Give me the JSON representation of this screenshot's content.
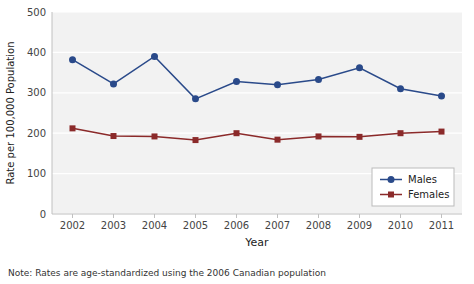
{
  "chart_data": {
    "type": "line",
    "xlabel": "Year",
    "ylabel": "Rate per 100,000 Population",
    "x": [
      2002,
      2003,
      2004,
      2005,
      2006,
      2007,
      2008,
      2009,
      2010,
      2011
    ],
    "series": [
      {
        "name": "Males",
        "color": "#2a4a8a",
        "marker": "circle",
        "values": [
          382,
          322,
          390,
          285,
          328,
          320,
          333,
          362,
          310,
          292
        ]
      },
      {
        "name": "Females",
        "color": "#8b2a2a",
        "marker": "square",
        "values": [
          212,
          193,
          192,
          183,
          200,
          184,
          192,
          191,
          200,
          204
        ]
      }
    ],
    "xlim": [
      2001.5,
      2011.5
    ],
    "xticks": [
      2002,
      2003,
      2004,
      2005,
      2006,
      2007,
      2008,
      2009,
      2010,
      2011
    ],
    "ylim": [
      0,
      500
    ],
    "yticks": [
      0,
      100,
      200,
      300,
      400,
      500
    ],
    "grid": true,
    "legend": "lower right",
    "note": "Note: Rates are age-standardized using the 2006 Canadian population"
  }
}
